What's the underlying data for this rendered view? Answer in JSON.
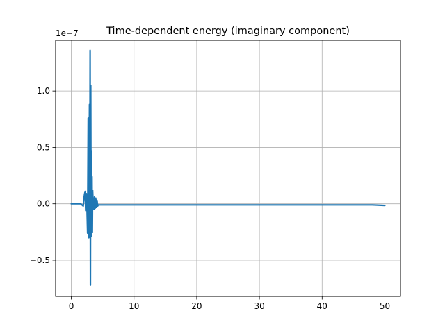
{
  "chart_data": {
    "type": "line",
    "title": "Time-dependent energy (imaginary component)",
    "xlabel": "",
    "ylabel": "",
    "offset_label": "1e−7",
    "xlim": [
      -2.5,
      52.5
    ],
    "ylim": [
      -0.82,
      1.45
    ],
    "y_scale_factor": 1e-07,
    "x_ticks": [
      0,
      10,
      20,
      30,
      40,
      50
    ],
    "x_tick_labels": [
      "0",
      "10",
      "20",
      "30",
      "40",
      "50"
    ],
    "y_ticks": [
      -0.5,
      0.0,
      0.5,
      1.0
    ],
    "y_tick_labels": [
      "−0.5",
      "0.0",
      "0.5",
      "1.0"
    ],
    "grid": true,
    "legend": "none",
    "series": [
      {
        "color": "#1f77b4",
        "x": [
          0,
          0.5,
          1.0,
          1.5,
          1.9,
          2.0,
          2.1,
          2.2,
          2.3,
          2.4,
          2.5,
          2.6,
          2.7,
          2.8,
          2.9,
          2.95,
          3.0,
          3.05,
          3.1,
          3.15,
          3.2,
          3.25,
          3.3,
          3.35,
          3.4,
          3.5,
          3.6,
          3.7,
          3.8,
          3.9,
          4.0,
          4.1,
          4.2,
          4.3,
          4.4,
          4.5,
          4.7,
          5.0,
          6.0,
          8.0,
          10.0,
          15.0,
          20.0,
          25.0,
          30.0,
          35.0,
          40.0,
          45.0,
          48.0,
          50.0
        ],
        "y": [
          0.0,
          0.0,
          0.0,
          0.0,
          -0.02,
          0.04,
          0.08,
          0.11,
          -0.06,
          0.09,
          -0.03,
          -0.26,
          0.76,
          -0.3,
          0.88,
          -0.24,
          1.36,
          -0.72,
          1.05,
          -0.18,
          0.47,
          -0.29,
          0.24,
          -0.25,
          0.12,
          -0.03,
          -0.05,
          0.06,
          -0.04,
          0.05,
          -0.03,
          0.03,
          -0.02,
          -0.01,
          -0.01,
          -0.01,
          -0.01,
          -0.01,
          -0.01,
          -0.01,
          -0.01,
          -0.01,
          -0.01,
          -0.01,
          -0.01,
          -0.01,
          -0.01,
          -0.01,
          -0.01,
          -0.015
        ]
      }
    ]
  }
}
